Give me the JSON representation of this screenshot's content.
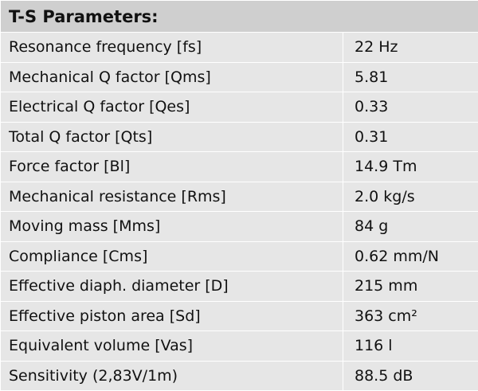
{
  "table": {
    "title": "T-S Parameters:",
    "rows": [
      [
        "Resonance frequency [fs]",
        "22 Hz"
      ],
      [
        "Mechanical Q factor [Qms]",
        "5.81"
      ],
      [
        "Electrical Q factor [Qes]",
        "0.33"
      ],
      [
        "Total Q factor [Qts]",
        "0.31"
      ],
      [
        "Force factor [Bl]",
        "14.9 Tm"
      ],
      [
        "Mechanical resistance [Rms]",
        "2.0 kg/s"
      ],
      [
        "Moving mass [Mms]",
        "84 g"
      ],
      [
        "Compliance [Cms]",
        "0.62 mm/N"
      ],
      [
        "Effective diaph. diameter [D]",
        "215 mm"
      ],
      [
        "Effective piston area [Sd]",
        "363 cm²"
      ],
      [
        "Equivalent volume [Vas]",
        "116 l"
      ],
      [
        "Sensitivity (2,83V/1m)",
        "88.5 dB"
      ]
    ]
  }
}
